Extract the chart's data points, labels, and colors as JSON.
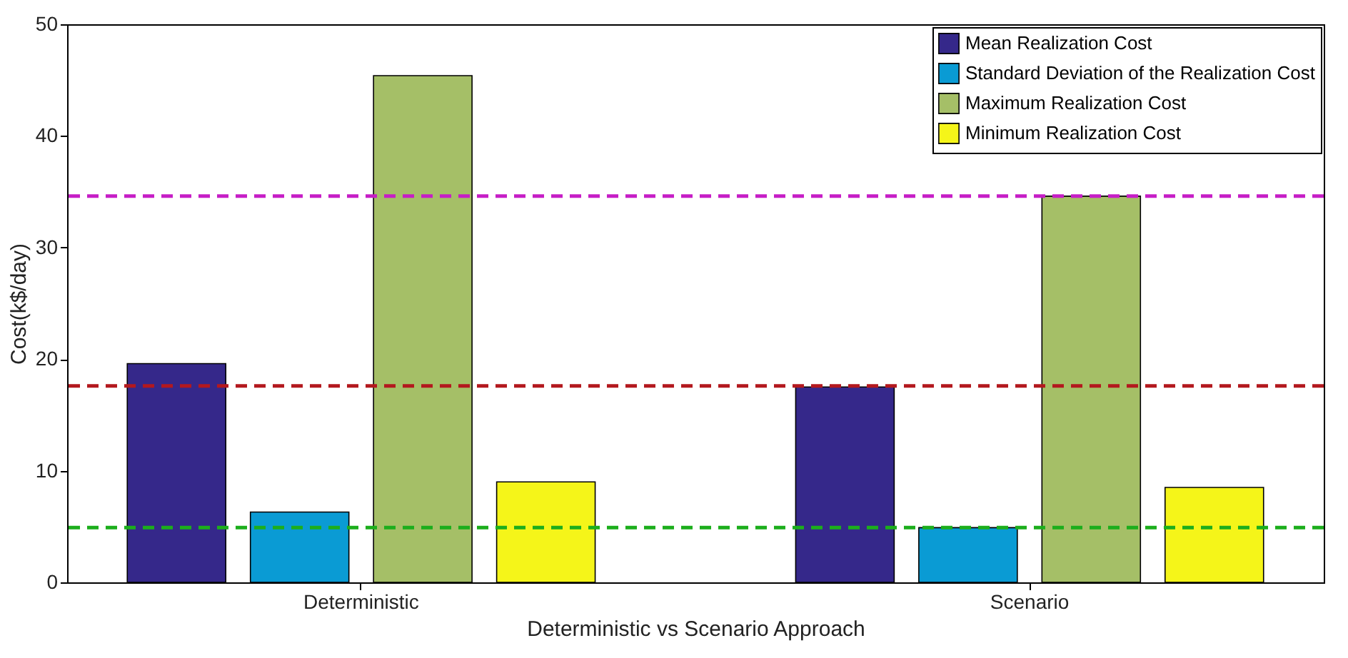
{
  "chart_data": {
    "type": "bar",
    "xlabel": "Deterministic vs Scenario Approach",
    "ylabel": "Cost(k$/day)",
    "categories": [
      "Deterministic",
      "Scenario"
    ],
    "series": [
      {
        "name": "Mean Realization Cost",
        "color": "#35288a",
        "values": [
          19.6,
          17.5
        ]
      },
      {
        "name": "Standard Deviation of the Realization Cost",
        "color": "#0a9bd4",
        "values": [
          6.3,
          4.9
        ]
      },
      {
        "name": "Maximum Realization Cost",
        "color": "#a5bf67",
        "values": [
          45.4,
          34.6
        ]
      },
      {
        "name": "Minimum Realization Cost",
        "color": "#f5f519",
        "values": [
          9.0,
          8.5
        ]
      }
    ],
    "ylim": [
      0,
      50
    ],
    "yticks": [
      0,
      10,
      20,
      30,
      40,
      50
    ],
    "ref_lines": [
      {
        "axis": "y",
        "value": 34.6,
        "color": "#c61ec6",
        "line_style": "dashed"
      },
      {
        "axis": "y",
        "value": 17.6,
        "color": "#b3181e",
        "line_style": "dashed"
      },
      {
        "axis": "y",
        "value": 4.9,
        "color": "#1cae1c",
        "line_style": "dashed"
      }
    ],
    "legend": "top right",
    "grid": false
  }
}
